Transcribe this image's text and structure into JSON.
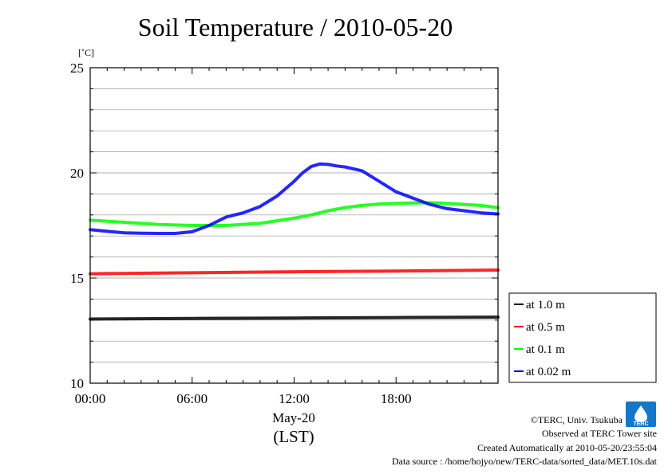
{
  "chart_data": {
    "type": "line",
    "title": "Soil Temperature / 2010-05-20",
    "ylabel": "[˚C]",
    "xlabel_date": "May-20",
    "xlabel_tz": "(LST)",
    "xlim": [
      0,
      24
    ],
    "ylim": [
      10,
      25
    ],
    "x_ticks": [
      {
        "label": "00:00",
        "value": 0
      },
      {
        "label": "06:00",
        "value": 6
      },
      {
        "label": "12:00",
        "value": 12
      },
      {
        "label": "18:00",
        "value": 18
      }
    ],
    "y_ticks": [
      {
        "label": "10",
        "value": 10
      },
      {
        "label": "15",
        "value": 15
      },
      {
        "label": "20",
        "value": 20
      },
      {
        "label": "25",
        "value": 25
      }
    ],
    "grid": true,
    "legend_position": "bottom-right-outside",
    "series": [
      {
        "name": "at 1.0 m",
        "color": "#000000",
        "x": [
          0,
          6,
          12,
          18,
          24
        ],
        "y": [
          13.05,
          13.08,
          13.1,
          13.12,
          13.14
        ]
      },
      {
        "name": "at 0.5 m",
        "color": "#ff0000",
        "x": [
          0,
          6,
          12,
          18,
          24
        ],
        "y": [
          15.2,
          15.25,
          15.3,
          15.33,
          15.38
        ]
      },
      {
        "name": "at 0.1 m",
        "color": "#00ff00",
        "x": [
          0,
          2,
          4,
          6,
          8,
          10,
          12,
          13,
          14,
          15,
          16,
          17,
          18,
          19,
          20,
          21,
          22,
          23,
          24
        ],
        "y": [
          17.75,
          17.65,
          17.55,
          17.5,
          17.5,
          17.6,
          17.85,
          18.0,
          18.2,
          18.35,
          18.45,
          18.52,
          18.55,
          18.57,
          18.58,
          18.55,
          18.5,
          18.45,
          18.35
        ]
      },
      {
        "name": "at 0.02 m",
        "color": "#0000ff",
        "x": [
          0,
          1,
          2,
          3,
          4,
          5,
          6,
          7,
          8,
          9,
          10,
          11,
          12,
          12.5,
          13,
          13.5,
          14,
          14.5,
          15,
          16,
          17,
          18,
          19,
          20,
          21,
          22,
          23,
          24
        ],
        "y": [
          17.3,
          17.22,
          17.15,
          17.13,
          17.12,
          17.12,
          17.2,
          17.5,
          17.9,
          18.1,
          18.4,
          18.9,
          19.6,
          20.0,
          20.3,
          20.42,
          20.4,
          20.33,
          20.28,
          20.1,
          19.6,
          19.1,
          18.8,
          18.5,
          18.3,
          18.2,
          18.1,
          18.05
        ]
      }
    ]
  },
  "credits": {
    "copyright": "©TERC, Univ. Tsukuba",
    "observed": "Observed at TERC Tower site",
    "created": "Created Automatically at 2010-05-20/23:55:04",
    "source": "Data source : /home/hojyo/new/TERC-data/sorted_data/MET.10s.dat"
  },
  "logo": {
    "text": "TERC"
  }
}
